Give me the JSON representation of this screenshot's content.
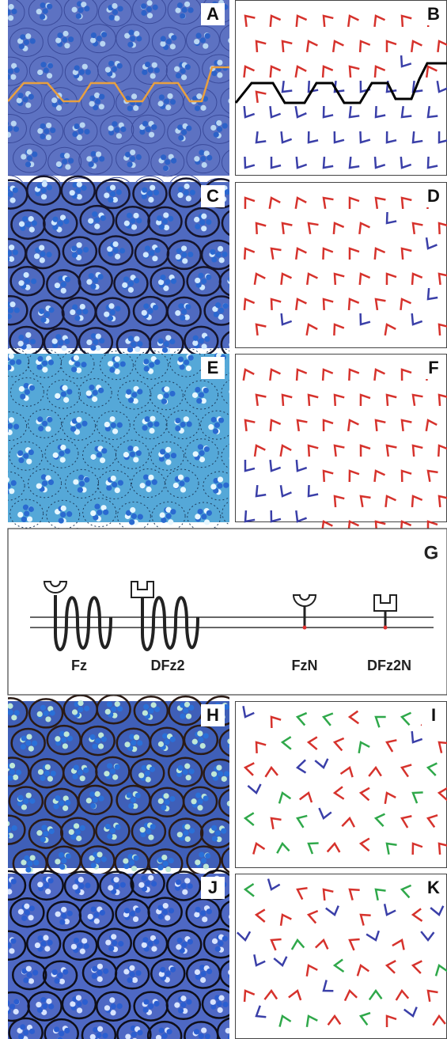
{
  "panel_labels": [
    "A",
    "B",
    "C",
    "D",
    "E",
    "F",
    "H",
    "I",
    "J",
    "K"
  ],
  "diagram": {
    "label": "G",
    "constructs": [
      "Fz",
      "DFz2",
      "FzN",
      "DFz2N"
    ]
  }
}
